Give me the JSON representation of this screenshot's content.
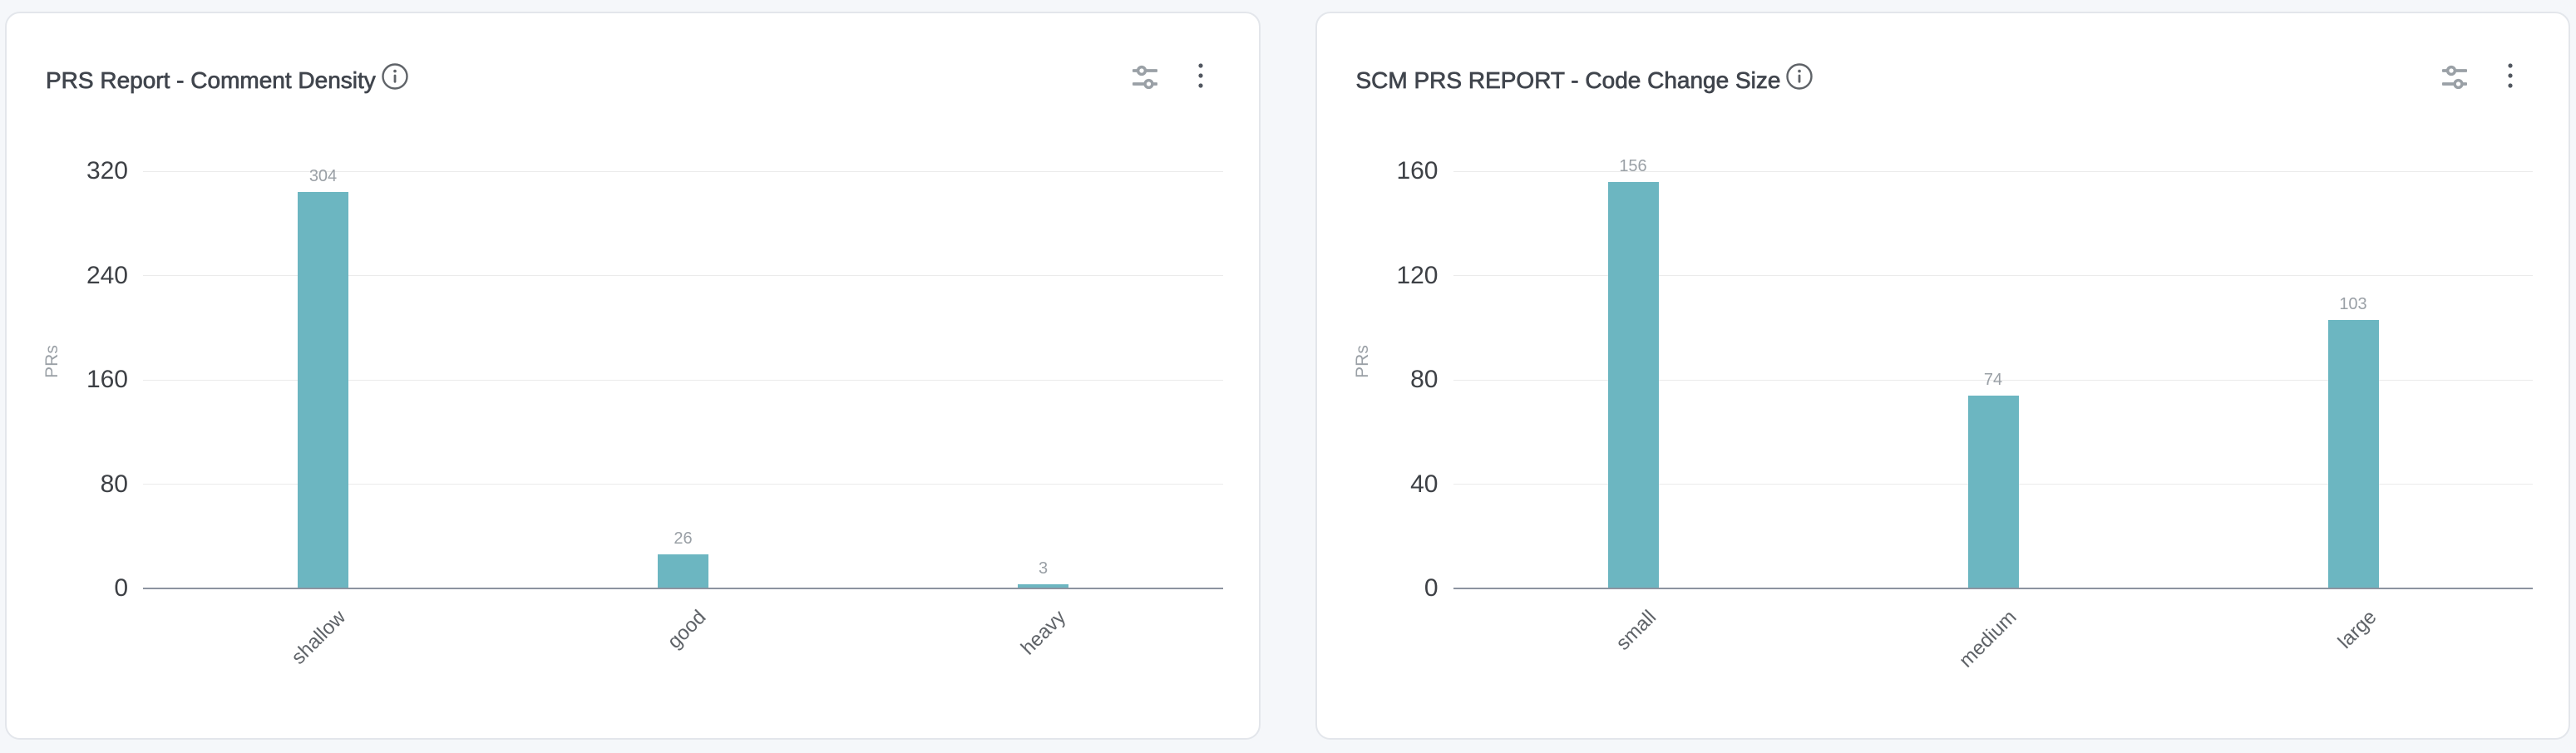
{
  "page": {
    "background": "#f5f7fa"
  },
  "colors": {
    "bar": "#6cb6c1",
    "grid_line": "#ebebeb",
    "axis_line": "#8c93a0",
    "tick_label": "#3d4045",
    "category_label": "#5f6368",
    "value_label": "#9aa0a6",
    "title": "#40454d",
    "card_border": "#e3e6eb"
  },
  "icons": {
    "info": "info-icon",
    "filter": "filter-sliders-icon",
    "menu": "kebab-menu-icon"
  },
  "chart_data": [
    {
      "type": "bar",
      "title": "PRS Report - Comment Density",
      "ylabel": "PRs",
      "xlabel": "",
      "categories": [
        "shallow",
        "good",
        "heavy"
      ],
      "values": [
        304,
        26,
        3
      ],
      "ylim": [
        0,
        320
      ],
      "yticks": [
        0,
        80,
        160,
        240,
        320
      ],
      "grid": true,
      "legend_position": "none"
    },
    {
      "type": "bar",
      "title": "SCM PRS REPORT - Code Change Size",
      "ylabel": "PRs",
      "xlabel": "",
      "categories": [
        "small",
        "medium",
        "large"
      ],
      "values": [
        156,
        74,
        103
      ],
      "ylim": [
        0,
        160
      ],
      "yticks": [
        0,
        40,
        80,
        120,
        160
      ],
      "grid": true,
      "legend_position": "none"
    }
  ]
}
